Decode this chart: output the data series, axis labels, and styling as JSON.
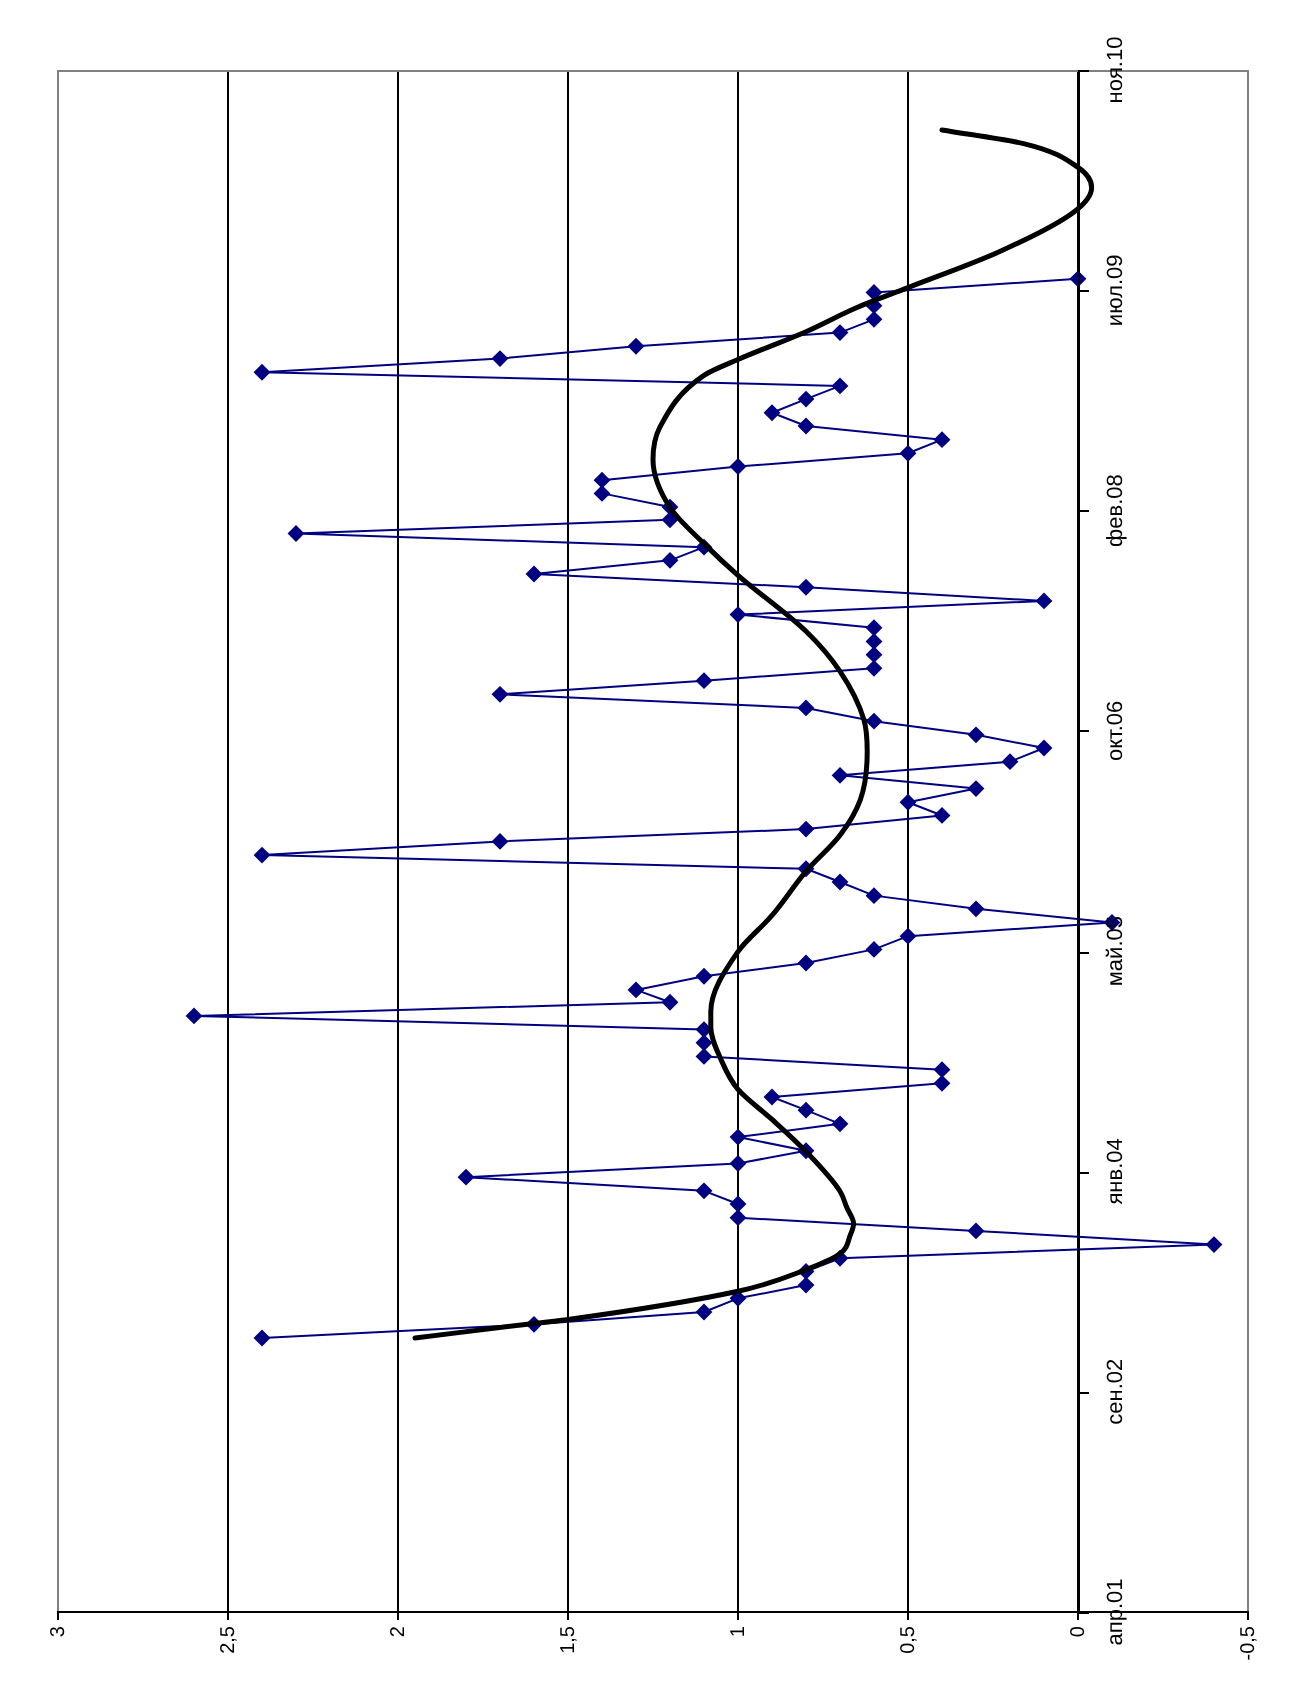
{
  "chart_data": {
    "type": "line",
    "orientation": "horizontal",
    "x": [
      "2003-01",
      "2003-02",
      "2003-03",
      "2003-04",
      "2003-05",
      "2003-06",
      "2003-07",
      "2003-08",
      "2003-09",
      "2003-10",
      "2003-11",
      "2003-12",
      "2004-01",
      "2004-02",
      "2004-03",
      "2004-04",
      "2004-05",
      "2004-06",
      "2004-07",
      "2004-08",
      "2004-09",
      "2004-10",
      "2004-11",
      "2004-12",
      "2005-01",
      "2005-02",
      "2005-03",
      "2005-04",
      "2005-05",
      "2005-06",
      "2005-07",
      "2005-08",
      "2005-09",
      "2005-10",
      "2005-11",
      "2005-12",
      "2006-01",
      "2006-02",
      "2006-03",
      "2006-04",
      "2006-05",
      "2006-06",
      "2006-07",
      "2006-08",
      "2006-09",
      "2006-10",
      "2006-11",
      "2006-12",
      "2007-01",
      "2007-02",
      "2007-03",
      "2007-04",
      "2007-05",
      "2007-06",
      "2007-07",
      "2007-08",
      "2007-09",
      "2007-10",
      "2007-11",
      "2007-12",
      "2008-01",
      "2008-02",
      "2008-03",
      "2008-04",
      "2008-05",
      "2008-06",
      "2008-07",
      "2008-08",
      "2008-09",
      "2008-10",
      "2008-11",
      "2008-12",
      "2009-01",
      "2009-02",
      "2009-03",
      "2009-04",
      "2009-05",
      "2009-06",
      "2009-07",
      "2009-08"
    ],
    "series": [
      {
        "color": "#000080",
        "marker": "diamond",
        "values": [
          2.4,
          1.6,
          1.1,
          1.0,
          0.8,
          0.8,
          0.7,
          -0.4,
          0.3,
          1.0,
          1.0,
          1.1,
          1.8,
          1.0,
          0.8,
          1.0,
          0.7,
          0.8,
          0.9,
          0.4,
          0.4,
          1.1,
          1.1,
          1.1,
          2.6,
          1.2,
          1.3,
          1.1,
          0.8,
          0.6,
          0.5,
          -0.1,
          0.3,
          0.6,
          0.7,
          0.8,
          2.4,
          1.7,
          0.8,
          0.4,
          0.5,
          0.3,
          0.7,
          0.2,
          0.1,
          0.3,
          0.6,
          0.8,
          1.7,
          1.1,
          0.6,
          0.6,
          0.6,
          0.6,
          1.0,
          0.1,
          0.8,
          1.6,
          1.2,
          1.1,
          2.3,
          1.2,
          1.2,
          1.4,
          1.4,
          1.0,
          0.5,
          0.4,
          0.8,
          0.9,
          0.8,
          0.7,
          2.4,
          1.7,
          1.3,
          0.7,
          0.6,
          0.6,
          0.6,
          0
        ]
      },
      {
        "type": "line",
        "color": "#000000",
        "marker": "none",
        "x": [
          "2003-01-01",
          "2003-02-03",
          "2003-02-12",
          "2003-04-17",
          "2003-06-05",
          "2003-07-11",
          "2003-08-22",
          "2003-09-18",
          "2003-10-24",
          "2003-11-30",
          "2004-02-28",
          "2004-05-11",
          "2004-07-18",
          "2004-09-24",
          "2004-12-06",
          "2005-01-11",
          "2005-05-27",
          "2005-08-17",
          "2005-11-25",
          "2006-02-15",
          "2006-05-07",
          "2006-08-24",
          "2006-11-05",
          "2007-02-22",
          "2007-05-24",
          "2007-09-28",
          "2007-12-09",
          "2008-02-29",
          "2008-06-17",
          "2008-08-29",
          "2008-12-25",
          "2009-01-30",
          "2009-04-03",
          "2009-05-28",
          "2009-07-12",
          "2009-10-02",
          "2010-01-01",
          "2010-02-24",
          "2010-04-11",
          "2010-06-04",
          "2010-07-05"
        ],
        "values": [
          1.95,
          1.6,
          1.5,
          1.0,
          0.8,
          0.7,
          0.67,
          0.66,
          0.68,
          0.7,
          0.8,
          0.9,
          1.0,
          1.05,
          1.08,
          1.08,
          1.0,
          0.9,
          0.8,
          0.7,
          0.64,
          0.62,
          0.63,
          0.7,
          0.8,
          1.0,
          1.1,
          1.2,
          1.25,
          1.23,
          1.1,
          1.0,
          0.8,
          0.65,
          0.5,
          0.23,
          0.01,
          -0.04,
          0.0,
          0.16,
          0.4
        ]
      }
    ],
    "xlim": [
      3,
      -0.5
    ],
    "xticks": [
      3,
      {
        "value": 2.5,
        "label": "2,5"
      },
      2,
      {
        "value": 1.5,
        "label": "1,5"
      },
      1,
      {
        "value": 0.5,
        "label": "0,5"
      },
      0,
      {
        "value": -0.5,
        "label": "-0,5"
      }
    ],
    "ylim": [
      "2001-04-19",
      "2010-11-18"
    ],
    "yticks": [
      {
        "value": "2001-04-19",
        "label": "апр.01"
      },
      {
        "value": "2002-09-01",
        "label": "сен.02"
      },
      {
        "value": "2004-01-14",
        "label": "янв.04"
      },
      {
        "value": "2005-05-28",
        "label": "май.05"
      },
      {
        "value": "2006-10-10",
        "label": "окт.06"
      },
      {
        "value": "2008-02-22",
        "label": "фев.08"
      },
      {
        "value": "2009-07-06",
        "label": "июл.09"
      },
      {
        "value": "2010-11-18",
        "label": "ноя.10"
      }
    ],
    "grid": "x"
  }
}
